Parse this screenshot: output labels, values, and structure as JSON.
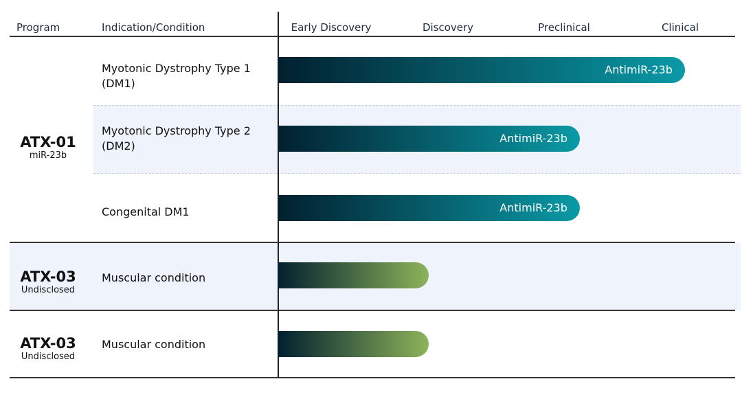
{
  "headers": {
    "program": "Program",
    "indication": "Indication/Condition"
  },
  "chart_data": {
    "type": "bar",
    "orientation": "horizontal",
    "stages": [
      "Early Discovery",
      "Discovery",
      "Preclinical",
      "Clinical"
    ],
    "value_unit": "percent of pipeline track",
    "rows": [
      {
        "program": "ATX-01",
        "target": "miR-23b",
        "indication_lines": [
          "Myotonic Dystrophy Type 1",
          "(DM1)"
        ],
        "progress": 89,
        "label": "AntimiR-23b",
        "color_start": "#02202f",
        "color_end": "#0a9aa6"
      },
      {
        "program": "ATX-01",
        "target": "miR-23b",
        "indication_lines": [
          "Myotonic Dystrophy Type 2",
          "(DM2)"
        ],
        "progress": 66,
        "label": "AntimiR-23b",
        "color_start": "#02202f",
        "color_end": "#0a9aa6"
      },
      {
        "program": "ATX-01",
        "target": "miR-23b",
        "indication_lines": [
          "Congenital DM1"
        ],
        "progress": 66,
        "label": "AntimiR-23b",
        "color_start": "#02202f",
        "color_end": "#0a9aa6"
      },
      {
        "program": "ATX-03",
        "target": "Undisclosed",
        "indication_lines": [
          "Muscular condition"
        ],
        "progress": 33,
        "label": "",
        "color_start": "#02202f",
        "color_end": "#8db35a"
      },
      {
        "program": "ATX-03",
        "target": "Undisclosed",
        "indication_lines": [
          "Muscular condition"
        ],
        "progress": 33,
        "label": "",
        "color_start": "#02202f",
        "color_end": "#8db35a"
      }
    ]
  },
  "programs": [
    {
      "name": "ATX-01",
      "sub": "miR-23b"
    },
    {
      "name": "ATX-03",
      "sub": "Undisclosed"
    },
    {
      "name": "ATX-03",
      "sub": "Undisclosed"
    }
  ]
}
